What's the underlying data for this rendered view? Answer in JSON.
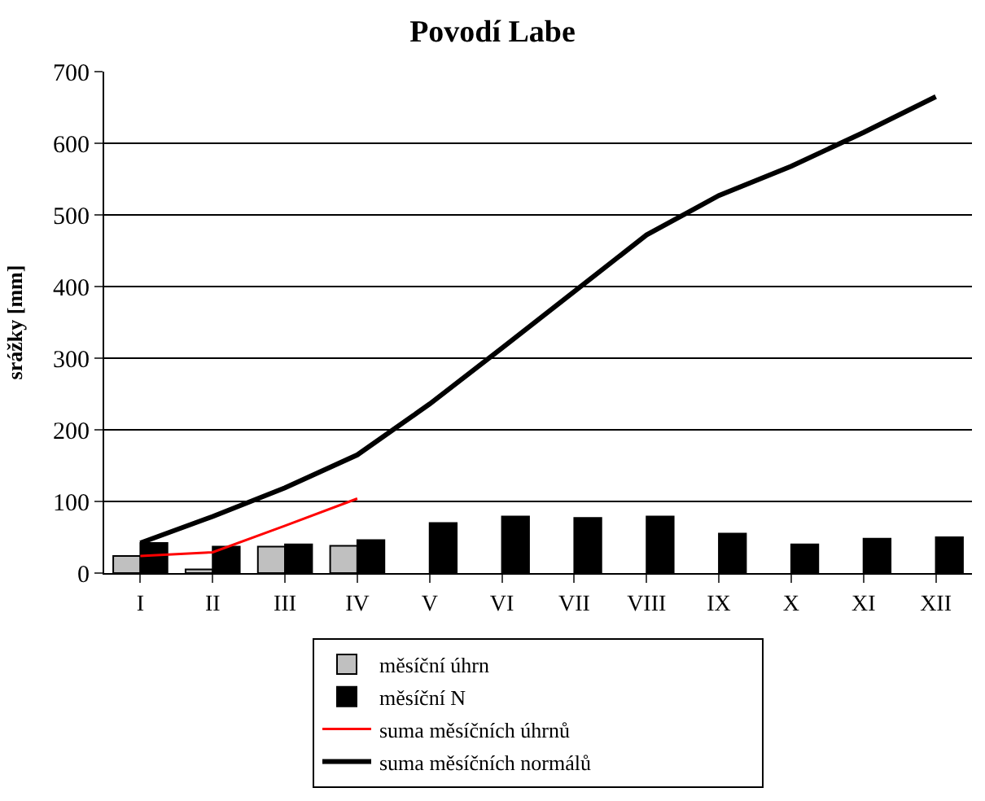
{
  "chart_data": {
    "type": "bar",
    "title": "Povodí Labe",
    "ylabel": "srážky [mm]",
    "categories": [
      "I",
      "II",
      "III",
      "IV",
      "V",
      "VI",
      "VII",
      "VIII",
      "IX",
      "X",
      "XI",
      "XII"
    ],
    "series": [
      {
        "name": "měsíční úhrn",
        "color": "#c0c0c0",
        "values": [
          24,
          5,
          37,
          38,
          null,
          null,
          null,
          null,
          null,
          null,
          null,
          null
        ]
      },
      {
        "name": "měsíční N",
        "color": "#000000",
        "values": [
          42,
          37,
          40,
          46,
          70,
          79,
          77,
          79,
          55,
          40,
          48,
          50
        ]
      },
      {
        "name": "suma měsíčních úhrnů",
        "type": "line",
        "color": "#ff0000",
        "values": [
          24,
          29,
          66,
          104,
          null,
          null,
          null,
          null,
          null,
          null,
          null,
          null
        ]
      },
      {
        "name": "suma měsíčních normálů",
        "type": "line",
        "color": "#000000",
        "values": [
          42,
          79,
          119,
          165,
          236,
          314,
          393,
          472,
          527,
          568,
          615,
          665
        ]
      }
    ],
    "ylim": [
      0,
      700
    ],
    "yticks": [
      0,
      100,
      200,
      300,
      400,
      500,
      600,
      700
    ],
    "grid": "y",
    "legend": "bottom",
    "marker": "none",
    "line_style": "solid"
  }
}
